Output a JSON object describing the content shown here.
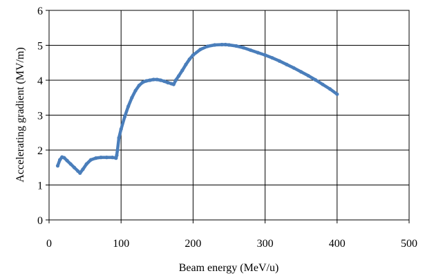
{
  "chart_data": {
    "type": "scatter",
    "title": "",
    "xlabel": "Beam energy (MeV/u)",
    "ylabel": "Accelerating gradient (MV/m)",
    "xlim": [
      0,
      500
    ],
    "ylim": [
      0,
      6
    ],
    "x_ticks": [
      0,
      100,
      200,
      300,
      400,
      500
    ],
    "y_ticks": [
      0,
      1,
      2,
      3,
      4,
      5,
      6
    ],
    "grid": true,
    "legend": "none",
    "series": [
      {
        "color": "#4a7ebb",
        "x": [
          12,
          15,
          18,
          21,
          25,
          30,
          35,
          40,
          43,
          47,
          52,
          58,
          65,
          72,
          80,
          88,
          93,
          94,
          95,
          97,
          100,
          105,
          110,
          115,
          120,
          125,
          130,
          135,
          140,
          145,
          150,
          155,
          160,
          165,
          170,
          173,
          176,
          180,
          185,
          190,
          195,
          200,
          210,
          220,
          230,
          240,
          245,
          250,
          260,
          270,
          280,
          290,
          300,
          310,
          320,
          330,
          340,
          350,
          360,
          370,
          380,
          390,
          400
        ],
        "y": [
          1.55,
          1.72,
          1.8,
          1.78,
          1.7,
          1.6,
          1.5,
          1.4,
          1.34,
          1.45,
          1.6,
          1.72,
          1.77,
          1.79,
          1.79,
          1.79,
          1.77,
          1.85,
          2.0,
          2.35,
          2.6,
          2.95,
          3.25,
          3.5,
          3.7,
          3.85,
          3.94,
          3.98,
          4.0,
          4.02,
          4.02,
          4.0,
          3.97,
          3.93,
          3.9,
          3.88,
          4.0,
          4.12,
          4.28,
          4.45,
          4.6,
          4.72,
          4.88,
          4.97,
          5.01,
          5.02,
          5.02,
          5.01,
          4.98,
          4.93,
          4.86,
          4.79,
          4.72,
          4.64,
          4.55,
          4.45,
          4.35,
          4.24,
          4.13,
          4.01,
          3.88,
          3.75,
          3.6
        ]
      }
    ]
  }
}
